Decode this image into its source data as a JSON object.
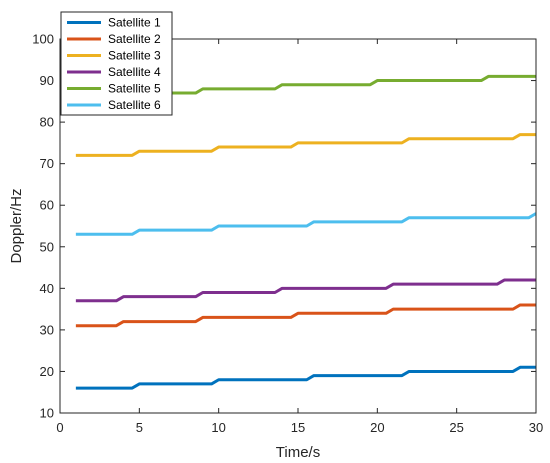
{
  "chart_data": {
    "type": "line",
    "title": "",
    "xlabel": "Time/s",
    "ylabel": "Doppler/Hz",
    "xlim": [
      0,
      30
    ],
    "ylim": [
      10,
      100
    ],
    "xticks": [
      0,
      5,
      10,
      15,
      20,
      25,
      30
    ],
    "yticks": [
      10,
      20,
      30,
      40,
      50,
      60,
      70,
      80,
      90,
      100
    ],
    "xtick_labels": [
      "0",
      "5",
      "10",
      "15",
      "20",
      "25",
      "30"
    ],
    "ytick_labels": [
      "10",
      "20",
      "30",
      "40",
      "50",
      "60",
      "70",
      "80",
      "90",
      "100"
    ],
    "grid": false,
    "legend_position": "top-left",
    "x": [
      1,
      2,
      3,
      4,
      5,
      6,
      7,
      8,
      9,
      10,
      11,
      12,
      13,
      14,
      15,
      16,
      17,
      18,
      19,
      20,
      21,
      22,
      23,
      24,
      25,
      26,
      27,
      28,
      29,
      30
    ],
    "series": [
      {
        "name": "Satellite 1",
        "color": "#0072BD",
        "values": [
          16,
          16,
          16,
          16,
          17,
          17,
          17,
          17,
          17,
          18,
          18,
          18,
          18,
          18,
          18,
          19,
          19,
          19,
          19,
          19,
          19,
          20,
          20,
          20,
          20,
          20,
          20,
          20,
          21,
          21
        ]
      },
      {
        "name": "Satellite 2",
        "color": "#D95319",
        "values": [
          31,
          31,
          31,
          32,
          32,
          32,
          32,
          32,
          33,
          33,
          33,
          33,
          33,
          33,
          34,
          34,
          34,
          34,
          34,
          34,
          35,
          35,
          35,
          35,
          35,
          35,
          35,
          35,
          36,
          36
        ]
      },
      {
        "name": "Satellite 3",
        "color": "#EDB120",
        "values": [
          72,
          72,
          72,
          72,
          73,
          73,
          73,
          73,
          73,
          74,
          74,
          74,
          74,
          74,
          75,
          75,
          75,
          75,
          75,
          75,
          75,
          76,
          76,
          76,
          76,
          76,
          76,
          76,
          77,
          77
        ]
      },
      {
        "name": "Satellite 4",
        "color": "#7E2F8E",
        "values": [
          37,
          37,
          37,
          38,
          38,
          38,
          38,
          38,
          39,
          39,
          39,
          39,
          39,
          40,
          40,
          40,
          40,
          40,
          40,
          40,
          41,
          41,
          41,
          41,
          41,
          41,
          41,
          42,
          42,
          42
        ]
      },
      {
        "name": "Satellite 5",
        "color": "#77AC30",
        "values": [
          86,
          86,
          86,
          86,
          87,
          87,
          87,
          87,
          88,
          88,
          88,
          88,
          88,
          89,
          89,
          89,
          89,
          89,
          89,
          90,
          90,
          90,
          90,
          90,
          90,
          90,
          91,
          91,
          91,
          91
        ]
      },
      {
        "name": "Satellite 6",
        "color": "#4DBEEE",
        "values": [
          53,
          53,
          53,
          53,
          54,
          54,
          54,
          54,
          54,
          55,
          55,
          55,
          55,
          55,
          55,
          56,
          56,
          56,
          56,
          56,
          56,
          57,
          57,
          57,
          57,
          57,
          57,
          57,
          57,
          58
        ]
      }
    ]
  }
}
